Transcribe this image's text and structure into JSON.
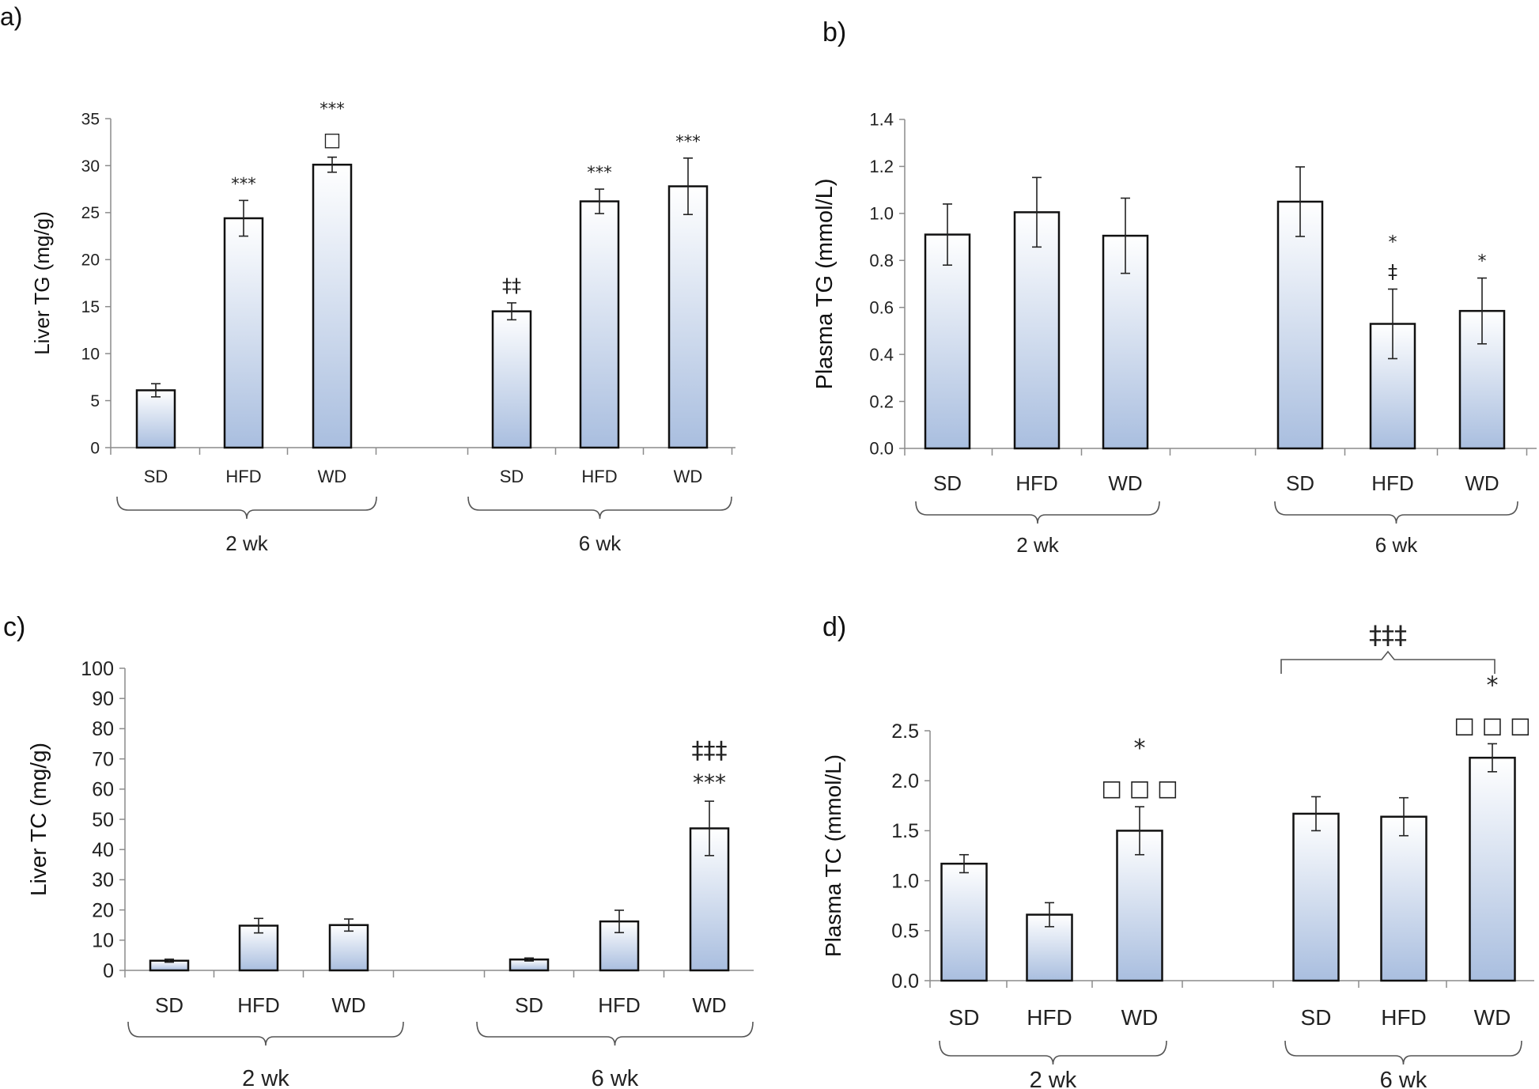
{
  "panels": {
    "a": {
      "letter": "a)"
    },
    "b": {
      "letter": "b)"
    },
    "c": {
      "letter": "c)"
    },
    "d": {
      "letter": "d)"
    }
  },
  "chart_data": [
    {
      "id": "a",
      "type": "bar",
      "ylabel": "Liver TG (mg/g)",
      "ylim": [
        0,
        35
      ],
      "yticks": [
        "0",
        "5",
        "10",
        "15",
        "20",
        "25",
        "30",
        "35"
      ],
      "groups": [
        {
          "label": "2 wk",
          "categories": [
            "SD",
            "HFD",
            "WD"
          ]
        },
        {
          "label": "6 wk",
          "categories": [
            "SD",
            "HFD",
            "WD"
          ]
        }
      ],
      "values": [
        6.1,
        24.4,
        30.1,
        14.5,
        26.2,
        27.8
      ],
      "errors": [
        0.7,
        1.9,
        0.8,
        0.9,
        1.3,
        3.0
      ],
      "annotations": [
        [],
        [
          "***"
        ],
        [
          "***",
          "□"
        ],
        [
          "‡‡"
        ],
        [
          "***"
        ],
        [
          "***"
        ]
      ],
      "group_annotation": ""
    },
    {
      "id": "b",
      "type": "bar",
      "ylabel": "Plasma TG (mmol/L)",
      "ylim": [
        0,
        1.4
      ],
      "yticks": [
        "0.0",
        "0.2",
        "0.4",
        "0.6",
        "0.8",
        "1.0",
        "1.2",
        "1.4"
      ],
      "groups": [
        {
          "label": "2 wk",
          "categories": [
            "SD",
            "HFD",
            "WD"
          ]
        },
        {
          "label": "6 wk",
          "categories": [
            "SD",
            "HFD",
            "WD"
          ]
        }
      ],
      "values": [
        0.91,
        1.005,
        0.905,
        1.05,
        0.53,
        0.585
      ],
      "errors": [
        0.13,
        0.148,
        0.16,
        0.148,
        0.148,
        0.14
      ],
      "annotations": [
        [],
        [],
        [],
        [],
        [
          "*",
          "‡"
        ],
        [
          "*"
        ]
      ],
      "group_annotation": ""
    },
    {
      "id": "c",
      "type": "bar",
      "ylabel": "Liver TC (mg/g)",
      "ylim": [
        0,
        100
      ],
      "yticks": [
        "0",
        "10",
        "20",
        "30",
        "40",
        "50",
        "60",
        "70",
        "80",
        "90",
        "100"
      ],
      "groups": [
        {
          "label": "2 wk",
          "categories": [
            "SD",
            "HFD",
            "WD"
          ]
        },
        {
          "label": "6 wk",
          "categories": [
            "SD",
            "HFD",
            "WD"
          ]
        }
      ],
      "values": [
        3.2,
        14.8,
        15.0,
        3.6,
        16.2,
        47.0
      ],
      "errors": [
        0.5,
        2.4,
        2.0,
        0.5,
        3.7,
        9.0
      ],
      "annotations": [
        [],
        [],
        [],
        [],
        [],
        [
          "‡‡‡",
          "***"
        ]
      ],
      "group_annotation": ""
    },
    {
      "id": "d",
      "type": "bar",
      "ylabel": "Plasma TC (mmol/L)",
      "ylim": [
        0,
        2.5
      ],
      "yticks": [
        "0.0",
        "0.5",
        "1.0",
        "1.5",
        "2.0",
        "2.5"
      ],
      "groups": [
        {
          "label": "2 wk",
          "categories": [
            "SD",
            "HFD",
            "WD"
          ]
        },
        {
          "label": "6 wk",
          "categories": [
            "SD",
            "HFD",
            "WD"
          ]
        }
      ],
      "values": [
        1.17,
        0.66,
        1.5,
        1.67,
        1.64,
        2.23
      ],
      "errors": [
        0.09,
        0.12,
        0.24,
        0.17,
        0.19,
        0.14
      ],
      "annotations": [
        [],
        [],
        [
          "*",
          "□ □ □"
        ],
        [],
        [],
        [
          "*",
          "□ □ □"
        ]
      ],
      "group_annotation": "‡‡‡"
    }
  ],
  "colors": {
    "bar_top": "#ffffff",
    "bar_bottom": "#a9bedf",
    "bar_outline": "#111111",
    "annotation_blue": "#4a6a9a"
  }
}
